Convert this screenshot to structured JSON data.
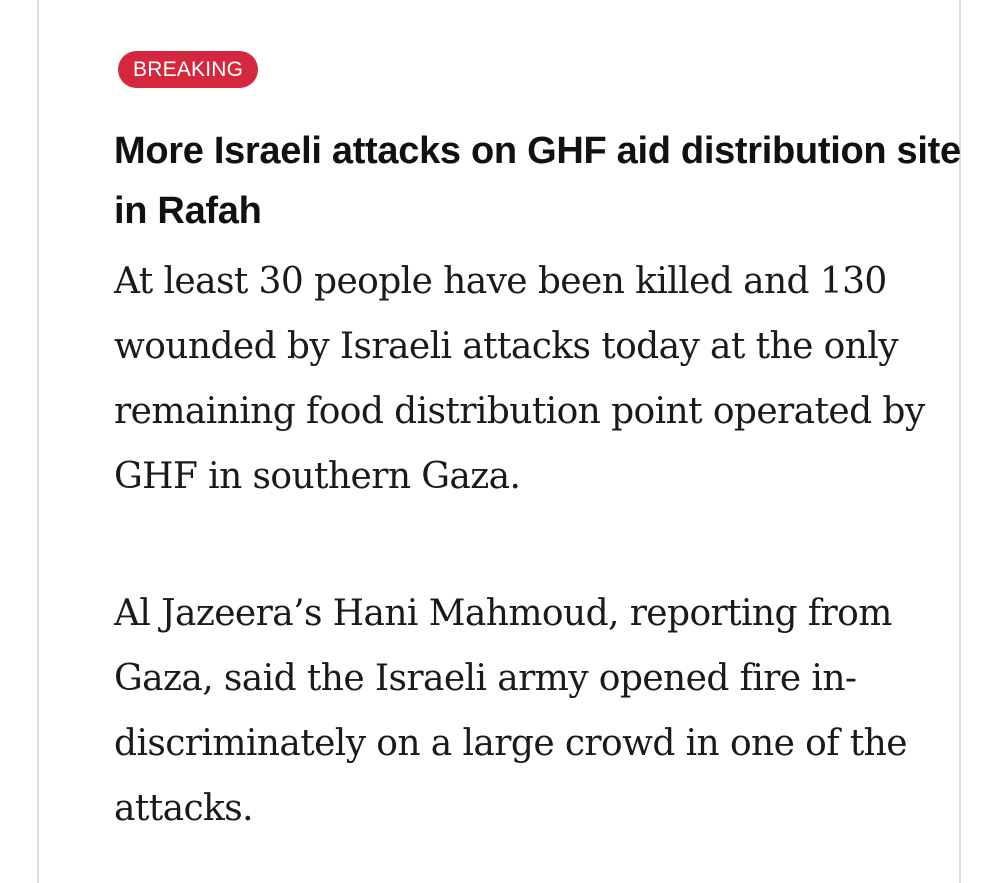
{
  "live_update": {
    "badge": "BREAKING",
    "headline": "More Israeli attacks on GHF aid distribution site in Rafah",
    "paragraphs": [
      "At least 30 people have been killed and 130 wounded by Israeli attacks today at the only remaining food distribution point operated by GHF in southern Gaza.",
      "Al Jazeera’s Hani Mahmoud, reporting from Gaza, said the Israeli army opened fire in-discriminately on a large crowd in one of the attacks."
    ]
  },
  "colors": {
    "badge_background": "#d4283f",
    "badge_text": "#ffffff",
    "headline_text": "#111111",
    "body_text": "#1a1a1a",
    "frame_border": "#dcdcdc"
  }
}
